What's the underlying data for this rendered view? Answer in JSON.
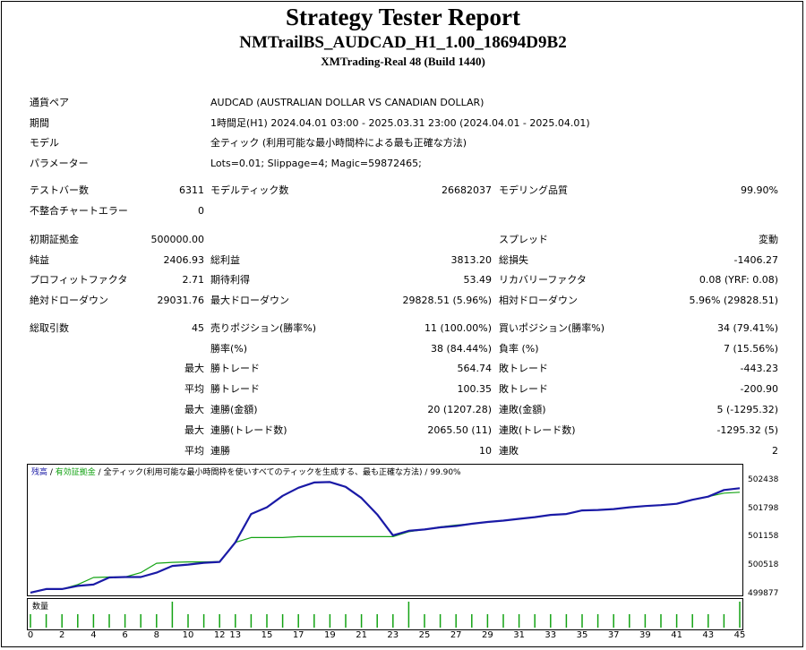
{
  "header": {
    "title": "Strategy Tester Report",
    "expert": "NMTrailBS_AUDCAD_H1_1.00_18694D9B2",
    "server": "XMTrading-Real 48 (Build 1440)"
  },
  "settings": {
    "symbol_label": "通貨ペア",
    "symbol_value": "AUDCAD (AUSTRALIAN DOLLAR VS CANADIAN DOLLAR)",
    "period_label": "期間",
    "period_value": "1時間足(H1) 2024.04.01 03:00 - 2025.03.31 23:00 (2024.04.01 - 2025.04.01)",
    "model_label": "モデル",
    "model_value": "全ティック (利用可能な最小時間枠による最も正確な方法)",
    "params_label": "パラメーター",
    "params_value": "Lots=0.01; Slippage=4; Magic=59872465;"
  },
  "stats": {
    "bars_label": "テストバー数",
    "bars_value": "6311",
    "ticks_label": "モデルティック数",
    "ticks_value": "26682037",
    "quality_label": "モデリング品質",
    "quality_value": "99.90%",
    "mismatch_label": "不整合チャートエラー",
    "mismatch_value": "0",
    "deposit_label": "初期証拠金",
    "deposit_value": "500000.00",
    "spread_label": "スプレッド",
    "spread_value": "変動",
    "net_label": "純益",
    "net_value": "2406.93",
    "gross_profit_label": "総利益",
    "gross_profit_value": "3813.20",
    "gross_loss_label": "総損失",
    "gross_loss_value": "-1406.27",
    "pf_label": "プロフィットファクタ",
    "pf_value": "2.71",
    "expected_label": "期待利得",
    "expected_value": "53.49",
    "recovery_label": "リカバリーファクタ",
    "recovery_value": "0.08 (YRF: 0.08)",
    "abs_dd_label": "絶対ドローダウン",
    "abs_dd_value": "29031.76",
    "max_dd_label": "最大ドローダウン",
    "max_dd_value": "29828.51 (5.96%)",
    "rel_dd_label": "相対ドローダウン",
    "rel_dd_value": "5.96% (29828.51)",
    "trades_label": "総取引数",
    "trades_value": "45",
    "short_label": "売りポジション(勝率%)",
    "short_value": "11 (100.00%)",
    "long_label": "買いポジション(勝率%)",
    "long_value": "34 (79.41%)",
    "winrate_label": "勝率(%)",
    "winrate_value": "38 (84.44%)",
    "lossrate_label": "負率 (%)",
    "lossrate_value": "7 (15.56%)",
    "max_prefix": "最大",
    "avg_prefix": "平均",
    "largest_win_label": "勝トレード",
    "largest_win_value": "564.74",
    "largest_loss_label": "敗トレード",
    "largest_loss_value": "-443.23",
    "avg_win_label": "勝トレード",
    "avg_win_value": "100.35",
    "avg_loss_label": "敗トレード",
    "avg_loss_value": "-200.90",
    "max_cons_wins_label": "連勝(金額)",
    "max_cons_wins_value": "20 (1207.28)",
    "max_cons_losses_label": "連敗(金額)",
    "max_cons_losses_value": "5 (-1295.32)",
    "max_cons_profit_label": "連勝(トレード数)",
    "max_cons_profit_value": "2065.50 (11)",
    "max_cons_loss_label": "連敗(トレード数)",
    "max_cons_loss_value": "-1295.32 (5)",
    "avg_cons_wins_label": "連勝",
    "avg_cons_wins_value": "10",
    "avg_cons_losses_label": "連敗",
    "avg_cons_losses_value": "2"
  },
  "chart_legend": {
    "balance": "残高",
    "sep1": " / ",
    "equity": "有効証拠金",
    "sep2": " / ",
    "model": "全ティック(利用可能な最小時間枠を使いすべてのティックを生成する、最も正確な方法)",
    "sep3": " / ",
    "quality": "99.90%"
  },
  "colors": {
    "balance": "#1a1aa6",
    "equity": "#13a313",
    "volume": "#13a313"
  },
  "volume_label": "数量",
  "chart_data": {
    "type": "line",
    "title": "",
    "x": [
      0,
      1,
      2,
      3,
      4,
      5,
      6,
      7,
      8,
      9,
      10,
      11,
      12,
      13,
      14,
      15,
      16,
      17,
      18,
      19,
      20,
      21,
      22,
      23,
      24,
      25,
      26,
      27,
      28,
      29,
      30,
      31,
      32,
      33,
      34,
      35,
      36,
      37,
      38,
      39,
      40,
      41,
      42,
      43,
      44,
      45
    ],
    "ylim": [
      499877,
      502700
    ],
    "yticks": [
      "502438",
      "501798",
      "501158",
      "500518",
      "499877"
    ],
    "ytick_values": [
      502438,
      501798,
      501158,
      500518,
      499877
    ],
    "xticks": [
      "0",
      "2",
      "4",
      "6",
      "8",
      "10",
      "12",
      "13",
      "15",
      "17",
      "19",
      "21",
      "23",
      "25",
      "27",
      "29",
      "31",
      "33",
      "35",
      "37",
      "39",
      "41",
      "43",
      "45"
    ],
    "xtick_values": [
      0,
      2,
      4,
      6,
      8,
      10,
      12,
      13,
      15,
      17,
      19,
      21,
      23,
      25,
      27,
      29,
      31,
      33,
      35,
      37,
      39,
      41,
      43,
      45
    ],
    "series": [
      {
        "name": "残高",
        "color": "#1a1aa6",
        "values": [
          499920,
          500000,
          500000,
          500070,
          500100,
          500260,
          500270,
          500270,
          500370,
          500520,
          500550,
          500590,
          500610,
          501050,
          501690,
          501840,
          502100,
          502280,
          502400,
          502410,
          502300,
          502050,
          501680,
          501210,
          501310,
          501340,
          501390,
          501420,
          501470,
          501510,
          501540,
          501580,
          501620,
          501670,
          501690,
          501770,
          501780,
          501800,
          501840,
          501870,
          501890,
          501920,
          502010,
          502080,
          502230,
          502270
        ]
      },
      {
        "name": "有効証拠金",
        "color": "#13a313",
        "values": [
          499920,
          500000,
          500000,
          500100,
          500260,
          500270,
          500270,
          500370,
          500580,
          500600,
          500610,
          500610,
          500620,
          501050,
          501160,
          501160,
          501160,
          501180,
          501180,
          501180,
          501180,
          501180,
          501180,
          501180,
          501290,
          501340,
          501400,
          501440,
          501470,
          501510,
          501540,
          501580,
          501620,
          501670,
          501690,
          501770,
          501780,
          501800,
          501840,
          501870,
          501890,
          501920,
          502010,
          502080,
          502160,
          502180
        ]
      }
    ],
    "volume": [
      1,
      1,
      1,
      1,
      1,
      1,
      1,
      1,
      1,
      3,
      1,
      1,
      1,
      1,
      1,
      1,
      1,
      1,
      1,
      1,
      1,
      1,
      1,
      1,
      3,
      1,
      1,
      1,
      1,
      1,
      1,
      1,
      1,
      1,
      1,
      1,
      1,
      1,
      1,
      1,
      1,
      1,
      1,
      1,
      1,
      3
    ]
  }
}
